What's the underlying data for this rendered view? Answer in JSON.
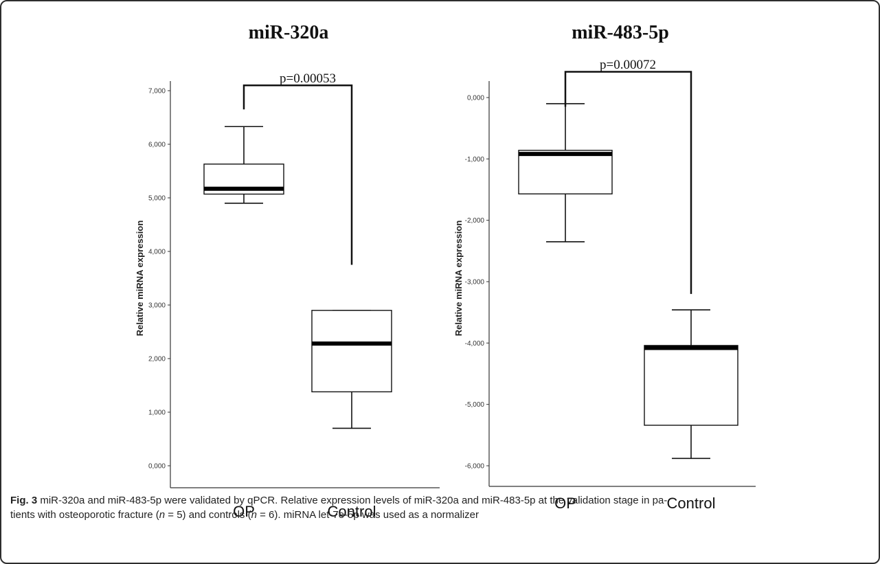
{
  "caption": {
    "fig_label": "Fig. 3",
    "line1_pre": "miR-320a and miR-483-5p were validated by qPCR. Relative expression levels of miR-320a and miR-483-5p at the validation stage in pa-",
    "line2_pre": "tients with osteoporotic fracture (",
    "n_label": "n",
    "line2_mid1": " = 5) and controls (",
    "line2_mid2": " = 6). miRNA let-7e-5p was used as a normalizer"
  },
  "chart_data": [
    {
      "type": "box",
      "title": "miR-320a",
      "ylabel": "Relative miRNA expression",
      "xlabel": "",
      "categories": [
        "OP",
        "Control"
      ],
      "ylim": [
        0,
        7
      ],
      "yticks": [
        0,
        1,
        2,
        3,
        4,
        5,
        6,
        7
      ],
      "ytick_labels": [
        "0,000",
        "1,000",
        "2,000",
        "3,000",
        "4,000",
        "5,000",
        "6,000",
        "7,000"
      ],
      "boxes": [
        {
          "category": "OP",
          "min": 4.9,
          "q1": 5.07,
          "median": 5.17,
          "q3": 5.63,
          "max": 6.33
        },
        {
          "category": "Control",
          "min": 0.7,
          "q1": 1.38,
          "median": 2.28,
          "q3": 2.9,
          "max": 2.9
        }
      ],
      "annotation": {
        "text": "p=0.00053",
        "from_value": 6.65,
        "to_value": 3.75,
        "bracket_value": 7.1
      }
    },
    {
      "type": "box",
      "title": "miR-483-5p",
      "ylabel": "Relative miRNA expression",
      "xlabel": "",
      "categories": [
        "OP",
        "Control"
      ],
      "ylim": [
        -6.3,
        0.25
      ],
      "yticks": [
        0,
        -1,
        -2,
        -3,
        -4,
        -5,
        -6
      ],
      "ytick_labels": [
        "0,000",
        "-1,000",
        "-2,000",
        "-3,000",
        "-4,000",
        "-5,000",
        "-6,000"
      ],
      "boxes": [
        {
          "category": "OP",
          "min": -2.35,
          "q1": -1.57,
          "median": -0.92,
          "q3": -0.86,
          "max": -0.1
        },
        {
          "category": "Control",
          "min": -5.88,
          "q1": -5.34,
          "median": -4.08,
          "q3": -4.04,
          "max": -3.46
        }
      ],
      "annotation": {
        "text": "p=0.00072",
        "from_value": -0.15,
        "to_value": -3.2,
        "bracket_value": 0.42
      }
    }
  ]
}
